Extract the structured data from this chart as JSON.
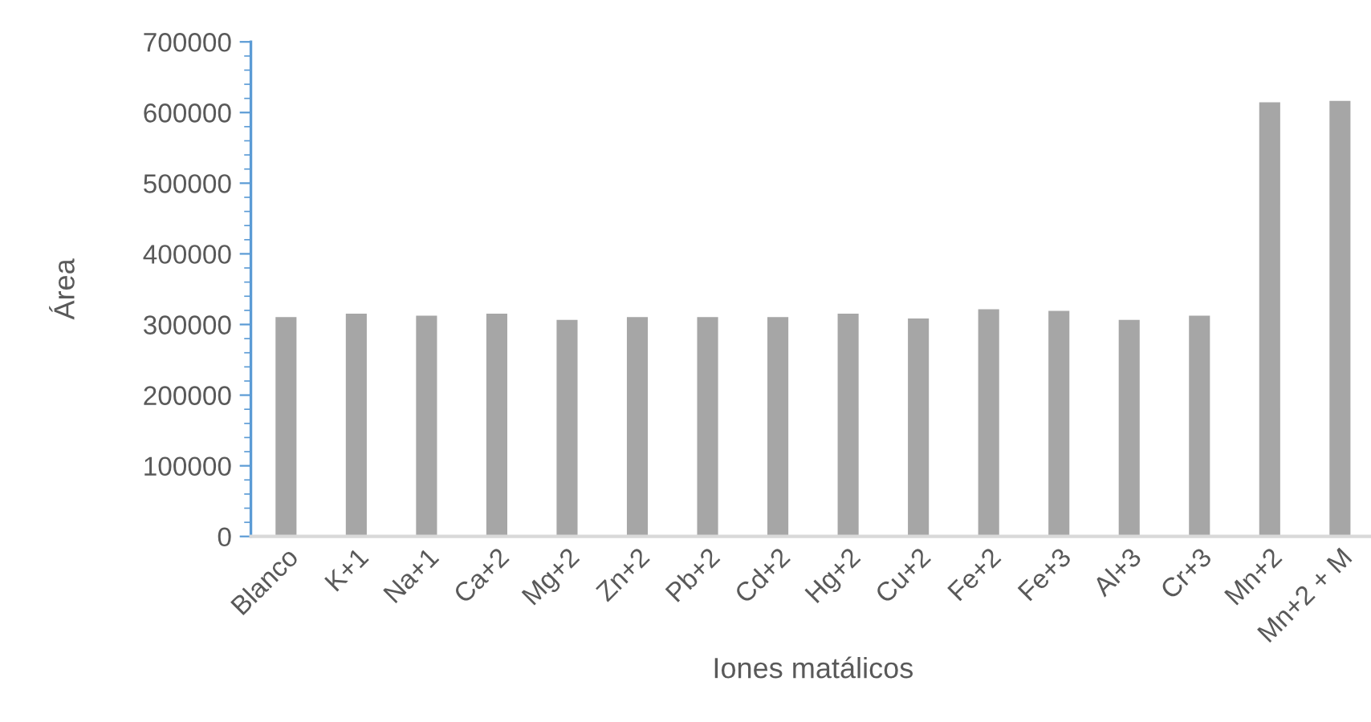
{
  "chart_data": {
    "type": "bar",
    "xlabel": "Iones matálicos",
    "ylabel": "Área",
    "categories": [
      "Blanco",
      "K+1",
      "Na+1",
      "Ca+2",
      "Mg+2",
      "Zn+2",
      "Pb+2",
      "Cd+2",
      "Hg+2",
      "Cu+2",
      "Fe+2",
      "Fe+3",
      "Al+3",
      "Cr+3",
      "Mn+2",
      "Mn+2 + M"
    ],
    "values": [
      312000,
      317000,
      314000,
      317000,
      308000,
      312000,
      312000,
      312000,
      317000,
      310000,
      323000,
      321000,
      308000,
      314000,
      616000,
      618000
    ],
    "color": "#a6a6a6",
    "ylim": [
      0,
      700000
    ],
    "yticks": [
      0,
      100000,
      200000,
      300000,
      400000,
      500000,
      600000,
      700000
    ],
    "grid": false,
    "legend": false
  }
}
